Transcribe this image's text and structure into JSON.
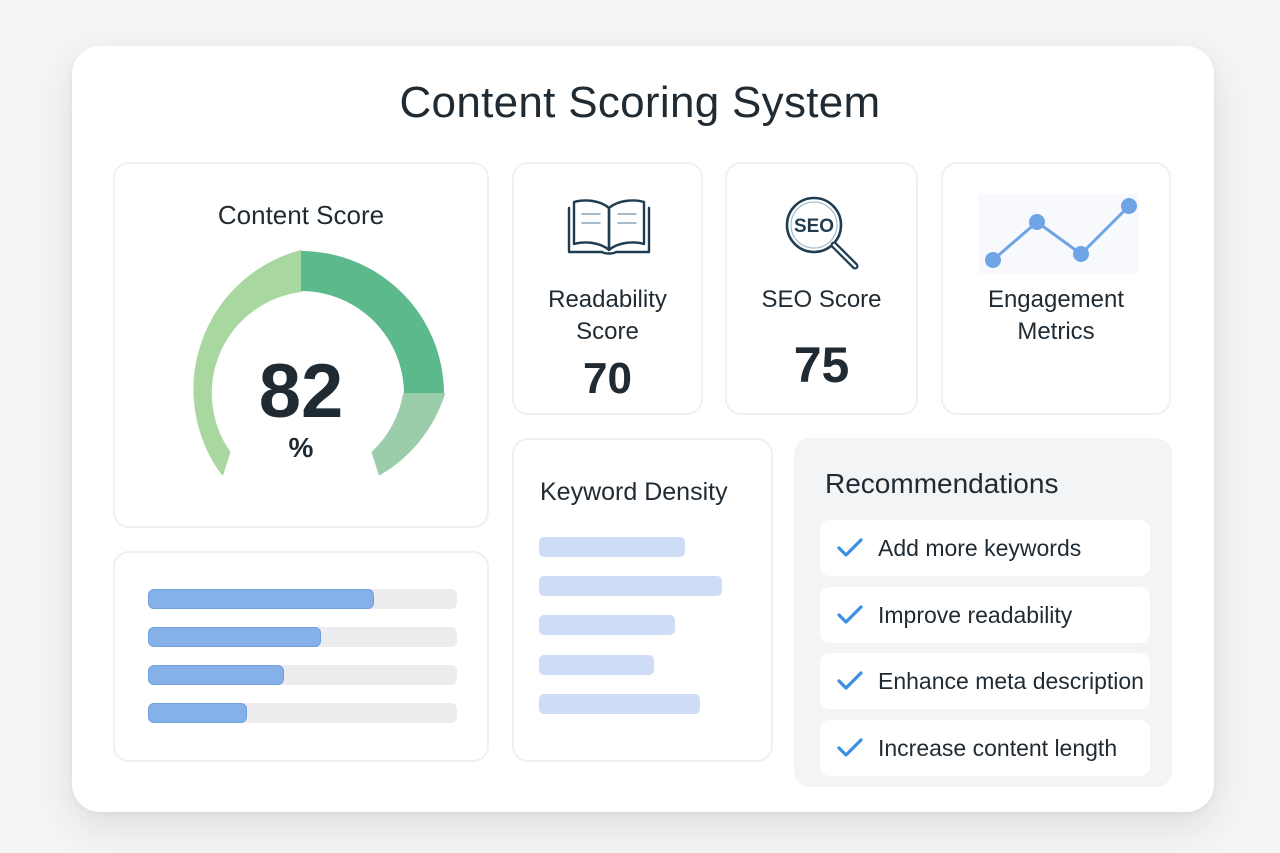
{
  "title": "Content Scoring System",
  "content_score": {
    "label": "Content Score",
    "value": "82",
    "unit": "%",
    "gauge_level": 0.82,
    "colors": {
      "light": "#a8d8a0",
      "mid": "#5cb98b",
      "soft": "#9ccdab"
    }
  },
  "metrics": [
    {
      "label_line1": "Readability",
      "label_line2": "Score",
      "value": "70",
      "icon": "open-book-icon"
    },
    {
      "label_line1": "SEO Score",
      "value": "75",
      "icon": "seo-magnifier-icon"
    },
    {
      "label_line1": "Engagement",
      "label_line2": "Metrics",
      "icon": "line-chart-icon"
    }
  ],
  "score_bars": {
    "levels": [
      0.73,
      0.56,
      0.44,
      0.32
    ],
    "colors": {
      "fill": "#86b0e8",
      "track": "#ededef"
    }
  },
  "keyword_density": {
    "label": "Keyword Density",
    "levels": [
      0.47,
      0.59,
      0.44,
      0.37,
      0.52
    ],
    "color": "#cfdcf6"
  },
  "recommendations": {
    "label": "Recommendations",
    "items": [
      "Add more keywords",
      "Improve readability",
      "Enhance meta description",
      "Increase content length"
    ],
    "check_color": "#3b8ee0"
  },
  "accent": "#6f9fe0"
}
